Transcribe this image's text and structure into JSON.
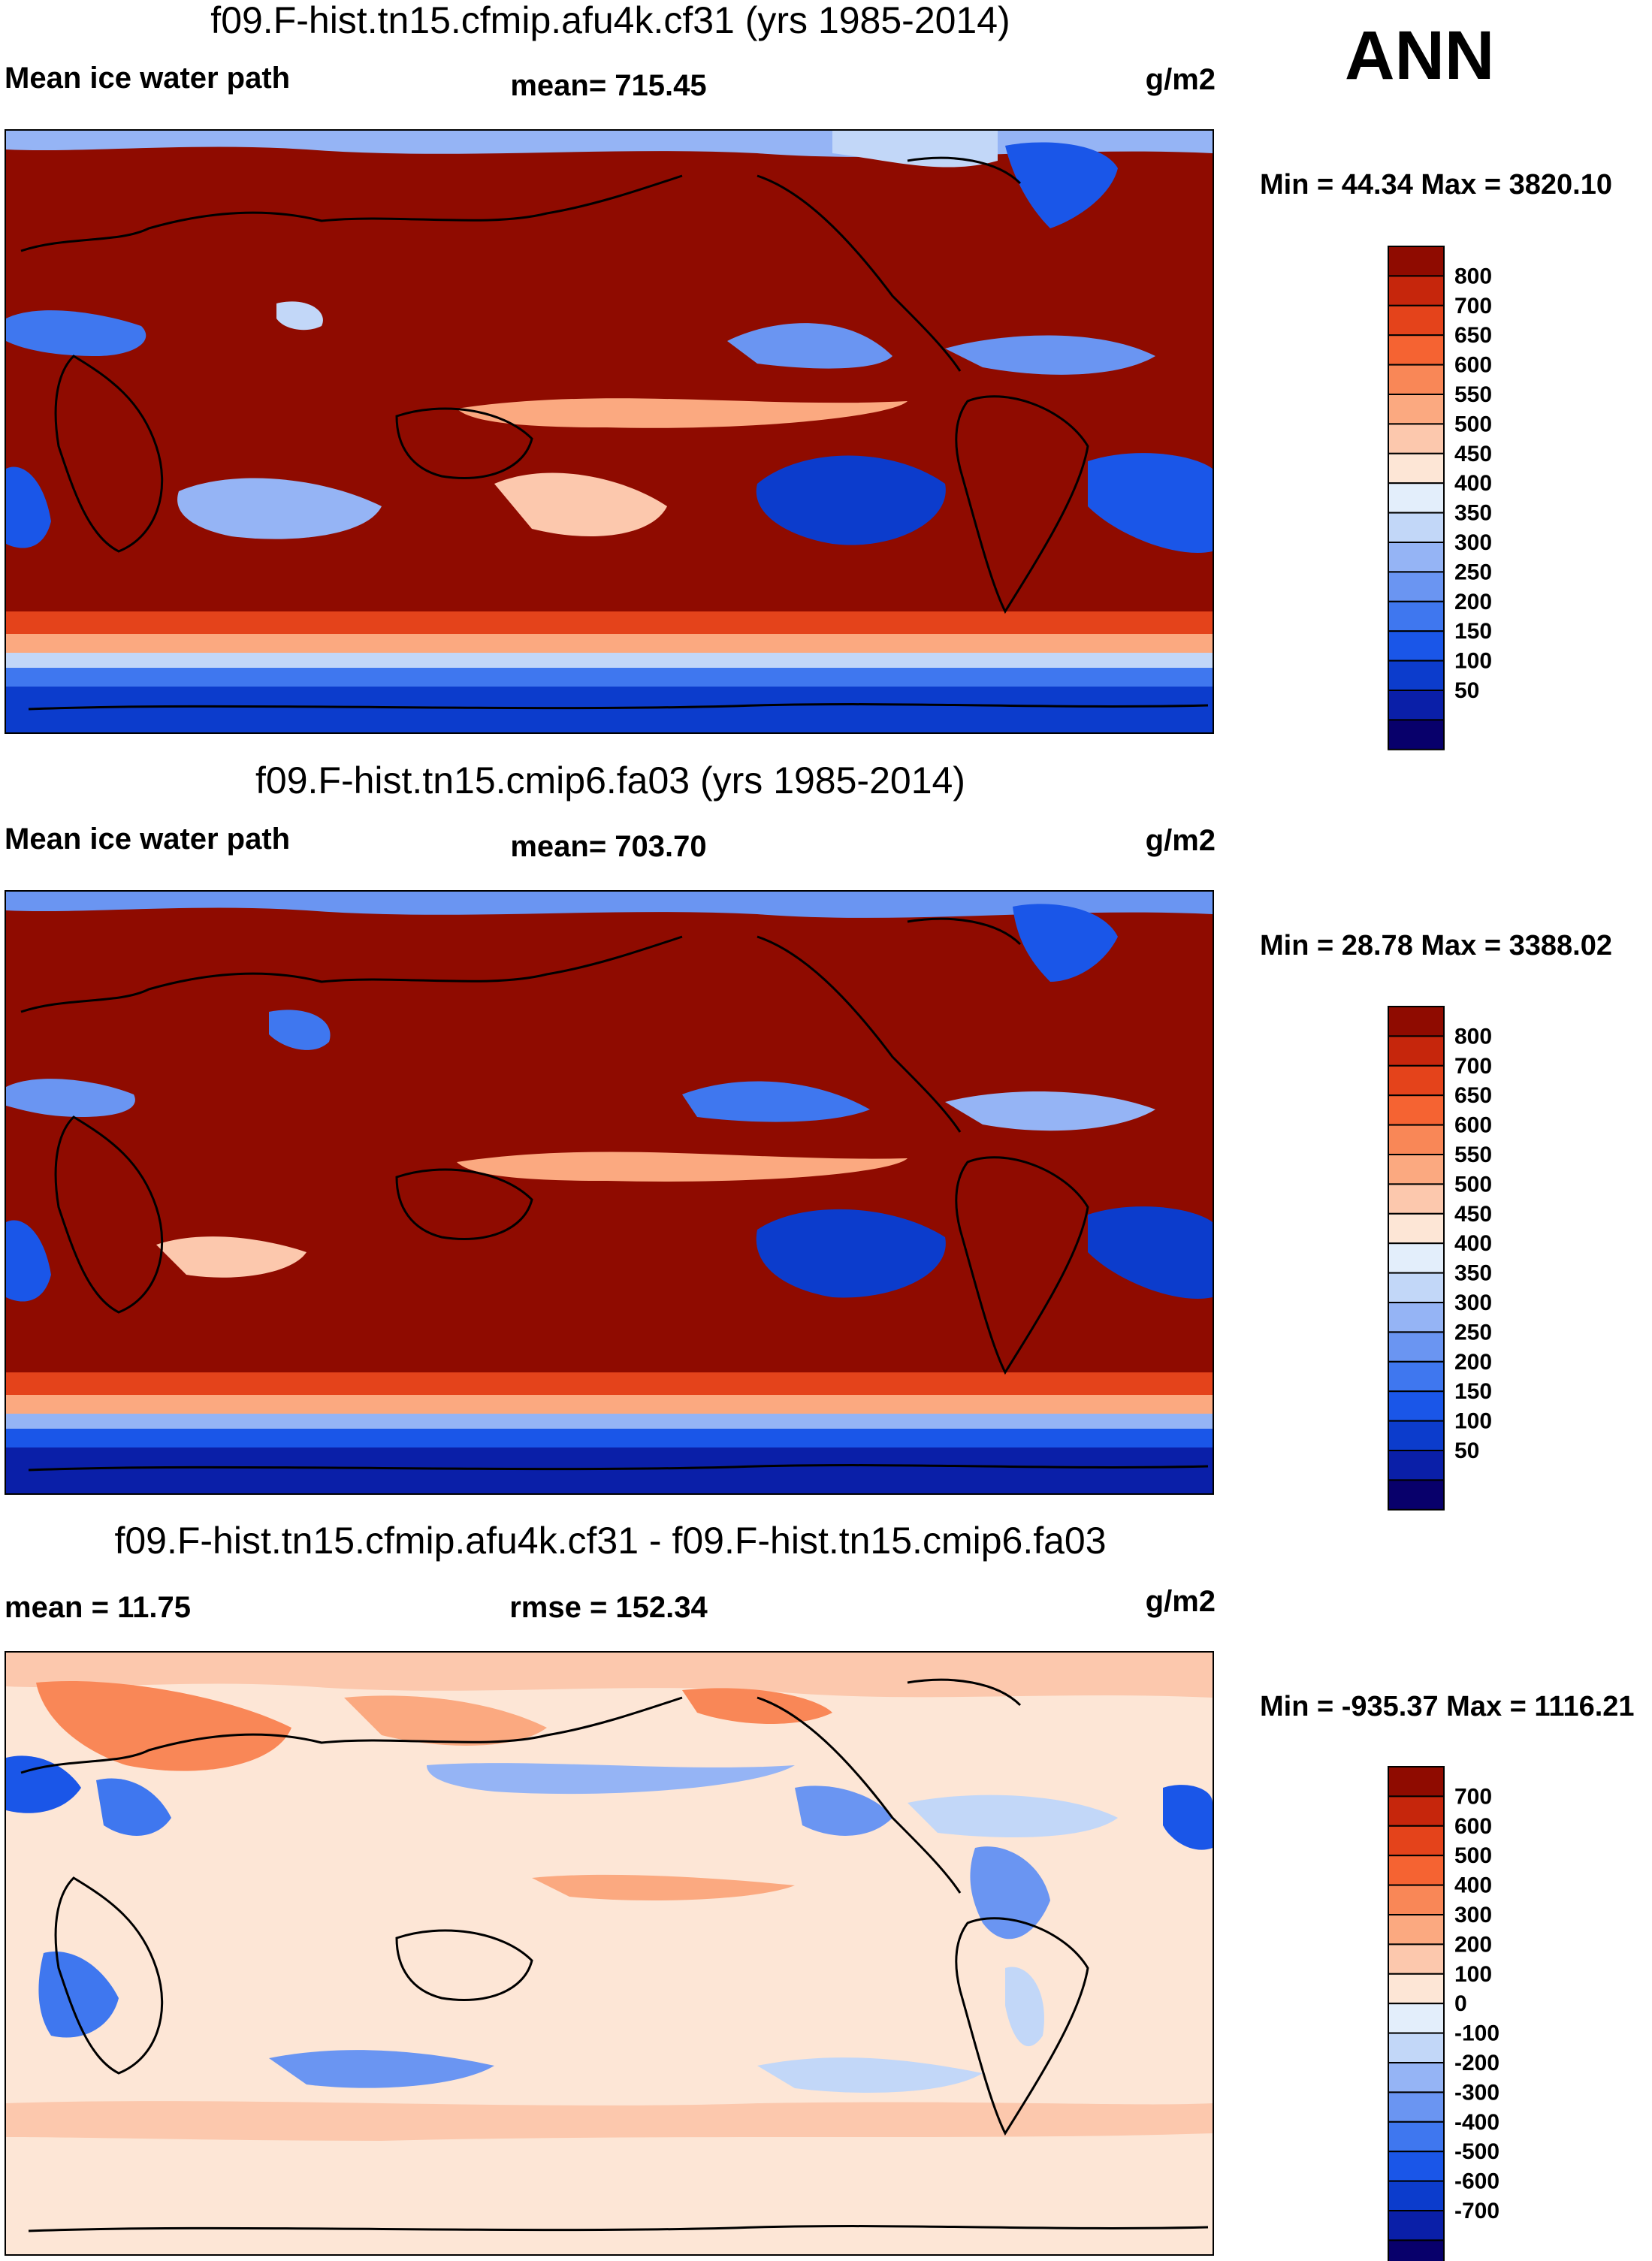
{
  "season": "ANN",
  "units": "g/m2",
  "colors": {
    "pos_scale": [
      "#08006b",
      "#0a1fa8",
      "#0c3ccc",
      "#1a56e8",
      "#3f77ef",
      "#6a95f2",
      "#95b4f5",
      "#c2d7f8",
      "#e3eefb",
      "#fde6d6",
      "#fcc8ad",
      "#fba980",
      "#f98757",
      "#f56332",
      "#e4431b",
      "#c6260c",
      "#8f0b00"
    ],
    "diff_scale": [
      "#08006b",
      "#0a1fa8",
      "#0c3ccc",
      "#1a56e8",
      "#3f77ef",
      "#6a95f2",
      "#95b4f5",
      "#c2d7f8",
      "#e3eefb",
      "#fde6d6",
      "#fcc8ad",
      "#fba980",
      "#f98757",
      "#f56332",
      "#e4431b",
      "#c6260c",
      "#8f0b00"
    ]
  },
  "panels": [
    {
      "title": "f09.F-hist.tn15.cfmip.afu4k.cf31 (yrs 1985-2014)",
      "left_label": "Mean ice water path",
      "mean_label": "mean= 715.45",
      "units": "g/m2",
      "minmax": "Min =  44.34 Max = 3820.10",
      "colorbar_labels": [
        "800",
        "700",
        "650",
        "600",
        "550",
        "500",
        "450",
        "400",
        "350",
        "300",
        "250",
        "200",
        "150",
        "100",
        "50"
      ],
      "icon": "world-map-icon"
    },
    {
      "title": "f09.F-hist.tn15.cmip6.fa03 (yrs 1985-2014)",
      "left_label": "Mean ice water path",
      "mean_label": "mean= 703.70",
      "units": "g/m2",
      "minmax": "Min =  28.78 Max = 3388.02",
      "colorbar_labels": [
        "800",
        "700",
        "650",
        "600",
        "550",
        "500",
        "450",
        "400",
        "350",
        "300",
        "250",
        "200",
        "150",
        "100",
        "50"
      ],
      "icon": "world-map-icon"
    },
    {
      "title": "f09.F-hist.tn15.cfmip.afu4k.cf31 - f09.F-hist.tn15.cmip6.fa03",
      "left_label": "mean =  11.75",
      "mean_label": "rmse = 152.34",
      "units": "g/m2",
      "minmax": "Min = -935.37 Max = 1116.21",
      "colorbar_labels": [
        "700",
        "600",
        "500",
        "400",
        "300",
        "200",
        "100",
        "0",
        "-100",
        "-200",
        "-300",
        "-400",
        "-500",
        "-600",
        "-700"
      ],
      "icon": "world-map-icon"
    }
  ]
}
